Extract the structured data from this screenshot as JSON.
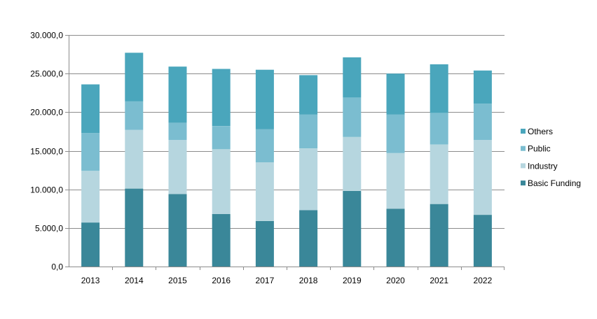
{
  "chart_data": {
    "type": "bar",
    "stacked": true,
    "categories": [
      "2013",
      "2014",
      "2015",
      "2016",
      "2017",
      "2018",
      "2019",
      "2020",
      "2021",
      "2022"
    ],
    "series": [
      {
        "name": "Basic Funding",
        "color": "#3a8799",
        "values": [
          5700,
          10100,
          9400,
          6800,
          5900,
          7300,
          9800,
          7500,
          8100,
          6700
        ]
      },
      {
        "name": "Industry",
        "color": "#b6d6df",
        "values": [
          6700,
          7600,
          7000,
          8400,
          7600,
          8000,
          7000,
          7200,
          7700,
          9700
        ]
      },
      {
        "name": "Public",
        "color": "#7bbdd0",
        "values": [
          4900,
          3700,
          2200,
          3000,
          4300,
          4400,
          5100,
          5000,
          4100,
          4700
        ]
      },
      {
        "name": "Others",
        "color": "#4aa6bc",
        "values": [
          6300,
          6300,
          7300,
          7400,
          7700,
          5100,
          5200,
          5300,
          6300,
          4300
        ]
      }
    ],
    "ylim": [
      0,
      30000
    ],
    "yticks": [
      "0,0",
      "5.000,0",
      "10.000,0",
      "15.000,0",
      "20.000,0",
      "25.000,0",
      "30.000,0"
    ],
    "grid": true,
    "legend_position": "right",
    "title": "",
    "xlabel": "",
    "ylabel": ""
  }
}
